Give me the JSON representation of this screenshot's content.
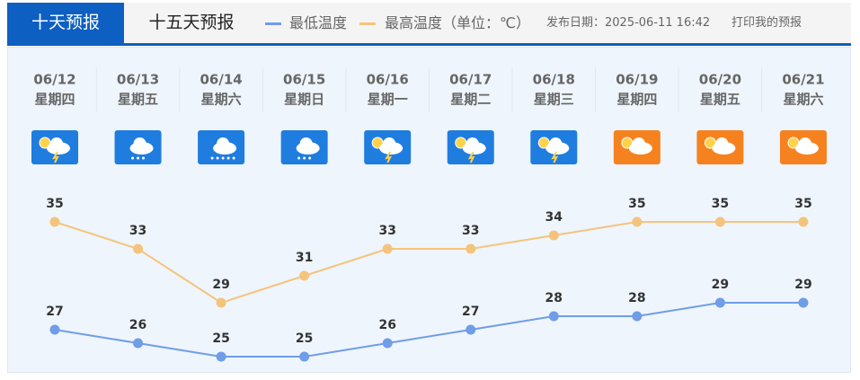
{
  "tabs": [
    "十天预报",
    "十五天预报"
  ],
  "publish_info": "发布日期：2025-06-11 16:42",
  "print_link": "打印我的预报",
  "chart_data": {
    "type": "line",
    "categories": [
      "06/12",
      "06/13",
      "06/14",
      "06/15",
      "06/16",
      "06/17",
      "06/18",
      "06/19",
      "06/20",
      "06/21"
    ],
    "weekdays": [
      "星期四",
      "星期五",
      "星期六",
      "星期日",
      "星期一",
      "星期二",
      "星期三",
      "星期四",
      "星期五",
      "星期六"
    ],
    "series": [
      {
        "name": "最低温度",
        "color": "#6f9de8",
        "values": [
          27,
          26,
          25,
          25,
          26,
          27,
          28,
          28,
          29,
          29
        ]
      },
      {
        "name": "最高温度（单位：℃）",
        "color": "#f5c47c",
        "values": [
          35,
          33,
          29,
          31,
          33,
          33,
          34,
          35,
          35,
          35
        ]
      }
    ]
  }
}
